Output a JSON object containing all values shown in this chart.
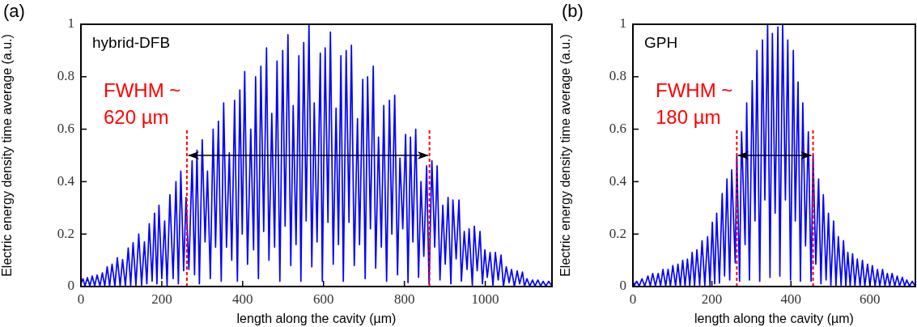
{
  "chart_data": [
    {
      "type": "line",
      "title": "(a)",
      "xlabel": "length along the cavity (µm)",
      "ylabel": "Electric energy density time average (a.u.)",
      "annotations": [
        "hybrid-DFB"
      ],
      "ref_lines": [
        {
          "axis": "x",
          "value": 262,
          "label": "FWHM ~ 620 µm",
          "color": "#ff0000",
          "line_style": "dashed"
        },
        {
          "axis": "x",
          "value": 862,
          "color": "#ff0000",
          "line_style": "dashed"
        }
      ],
      "xlim": [
        0,
        1165
      ],
      "xticks": [
        0,
        200,
        400,
        600,
        800,
        1000
      ],
      "ylim": [
        0,
        1
      ],
      "yticks": [
        0,
        0.2,
        0.4,
        0.6,
        0.8,
        1
      ],
      "x": [
        0,
        5,
        10,
        16,
        22,
        28,
        34,
        40,
        47,
        53,
        59,
        65,
        71,
        77,
        84,
        90,
        97,
        103,
        110,
        117,
        123,
        129,
        136,
        143,
        150,
        157,
        163,
        169,
        176,
        182,
        188,
        193,
        200,
        207,
        213,
        220,
        228,
        235,
        241,
        247,
        254,
        260,
        267,
        275,
        281,
        287,
        293,
        300,
        307,
        313,
        320,
        327,
        333,
        340,
        347,
        353,
        360,
        367,
        373,
        380,
        387,
        393,
        399,
        405,
        412,
        420,
        427,
        432,
        439,
        445,
        452,
        459,
        465,
        472,
        479,
        485,
        492,
        499,
        505,
        512,
        519,
        525,
        532,
        539,
        544,
        551,
        557,
        564,
        571,
        577,
        584,
        592,
        597,
        604,
        611,
        617,
        624,
        631,
        637,
        643,
        649,
        656,
        663,
        669,
        676,
        684,
        689,
        697,
        703,
        709,
        716,
        723,
        729,
        736,
        743,
        749,
        756,
        763,
        769,
        776,
        783,
        789,
        796,
        803,
        809,
        815,
        821,
        828,
        835,
        841,
        848,
        855,
        861,
        868,
        875,
        881,
        888,
        895,
        901,
        908,
        915,
        920,
        928,
        935,
        941,
        948,
        955,
        960,
        968,
        973,
        980,
        987,
        993,
        999,
        1005,
        1012,
        1019,
        1025,
        1032,
        1039,
        1045,
        1052,
        1059,
        1065,
        1072,
        1079,
        1085,
        1092,
        1097,
        1103,
        1110,
        1117,
        1123,
        1130,
        1137,
        1143,
        1150,
        1157,
        1163
      ],
      "series": [
        {
          "color": "#0000ff",
          "values": [
            0.01,
            0.03,
            0.002,
            0.034,
            0.002,
            0.04,
            0.002,
            0.044,
            0.002,
            0.052,
            0.002,
            0.075,
            0.002,
            0.085,
            0.002,
            0.11,
            0.002,
            0.103,
            0.002,
            0.147,
            0.005,
            0.167,
            0.005,
            0.2,
            0.005,
            0.17,
            0.01,
            0.24,
            0.02,
            0.28,
            0.01,
            0.31,
            0.03,
            0.25,
            0.005,
            0.35,
            0.03,
            0.4,
            0.01,
            0.44,
            0.06,
            0.34,
            0.065,
            0.48,
            0.045,
            0.52,
            0.01,
            0.56,
            0.17,
            0.44,
            0.03,
            0.6,
            0.15,
            0.63,
            0.02,
            0.7,
            0.15,
            0.51,
            0.1,
            0.71,
            0.02,
            0.75,
            0.2,
            0.82,
            0.085,
            0.6,
            0.14,
            0.8,
            0.03,
            0.84,
            0.21,
            0.91,
            0.1,
            0.66,
            0.15,
            0.86,
            0.02,
            0.9,
            0.23,
            0.96,
            0.08,
            0.69,
            0.16,
            0.88,
            0.02,
            0.93,
            0.25,
            1.0,
            0.075,
            0.7,
            0.17,
            0.89,
            0.02,
            0.91,
            0.245,
            0.97,
            0.085,
            0.68,
            0.16,
            0.88,
            0.02,
            0.9,
            0.245,
            0.92,
            0.08,
            0.64,
            0.16,
            0.79,
            0.03,
            0.8,
            0.22,
            0.84,
            0.07,
            0.57,
            0.15,
            0.69,
            0.02,
            0.71,
            0.2,
            0.73,
            0.045,
            0.49,
            0.22,
            0.58,
            0.015,
            0.57,
            0.17,
            0.6,
            0.035,
            0.4,
            0.115,
            0.46,
            0.01,
            0.48,
            0.15,
            0.46,
            0.025,
            0.31,
            0.085,
            0.34,
            0.01,
            0.33,
            0.105,
            0.33,
            0.02,
            0.21,
            0.065,
            0.22,
            0.005,
            0.23,
            0.06,
            0.21,
            0.01,
            0.14,
            0.035,
            0.13,
            0.005,
            0.13,
            0.025,
            0.12,
            0,
            0.075,
            0.015,
            0.065,
            0,
            0.06,
            0.01,
            0.055,
            0,
            0.03,
            0.002,
            0.025,
            0.002,
            0.025,
            0.002,
            0.02,
            0.002,
            0.02,
            0.005
          ]
        }
      ]
    },
    {
      "type": "line",
      "title": "(b)",
      "xlabel": "length along the cavity (µm)",
      "ylabel": "Electric energy density time average (a.u.)",
      "annotations": [
        "GPH"
      ],
      "ref_lines": [
        {
          "axis": "x",
          "value": 263,
          "label": "FWHM ~ 180 µm",
          "color": "#ff0000",
          "line_style": "dashed"
        },
        {
          "axis": "x",
          "value": 456,
          "color": "#ff0000",
          "line_style": "dashed"
        }
      ],
      "xlim": [
        0,
        715
      ],
      "xticks": [
        0,
        200,
        400,
        600
      ],
      "ylim": [
        0,
        1
      ],
      "yticks": [
        0,
        0.2,
        0.4,
        0.6,
        0.8,
        1
      ],
      "x": [
        0,
        4,
        9.5,
        16,
        23,
        30,
        38,
        44,
        50,
        57,
        64,
        70,
        76,
        83,
        89,
        95,
        101,
        108,
        114,
        120,
        126,
        132,
        138,
        144,
        150,
        156,
        162,
        169,
        175,
        182,
        189,
        195,
        201,
        207,
        212,
        219,
        226,
        232,
        238,
        245,
        250,
        259,
        263,
        270,
        275,
        284,
        288,
        295,
        302,
        309,
        314,
        321,
        328,
        334,
        341,
        347,
        353,
        360,
        367,
        372,
        379,
        386,
        392,
        399,
        406,
        411,
        418,
        424,
        430,
        437,
        444,
        451,
        456,
        463,
        470,
        476,
        482,
        489,
        495,
        501,
        508,
        514,
        520,
        527,
        533,
        539,
        544,
        550,
        556,
        562,
        568,
        575,
        581,
        587,
        594,
        600,
        606,
        613,
        619,
        625,
        632,
        638,
        644,
        650,
        656,
        663,
        669,
        675,
        682,
        688,
        693,
        700,
        707,
        713
      ],
      "series": [
        {
          "color": "#0000ff",
          "values": [
            0.02,
            0.005,
            0.02,
            0.002,
            0.03,
            0.002,
            0.04,
            0.002,
            0.05,
            0.002,
            0.05,
            0.002,
            0.065,
            0.002,
            0.065,
            0.002,
            0.08,
            0.002,
            0.085,
            0.002,
            0.1,
            0.002,
            0.105,
            0.002,
            0.13,
            0.002,
            0.14,
            0.005,
            0.175,
            0.005,
            0.19,
            0.005,
            0.245,
            0.01,
            0.28,
            0.013,
            0.355,
            0.04,
            0.41,
            0.025,
            0.445,
            0.09,
            0.5,
            0.02,
            0.59,
            0.16,
            0.7,
            0.025,
            0.785,
            0.25,
            0.9,
            0.02,
            0.94,
            0.33,
            1.0,
            0.035,
            0.965,
            0.28,
            0.99,
            0.04,
            1.0,
            0.33,
            0.94,
            0.025,
            0.9,
            0.25,
            0.78,
            0.02,
            0.7,
            0.155,
            0.59,
            0.02,
            0.5,
            0.085,
            0.41,
            0.01,
            0.35,
            0.025,
            0.28,
            0.005,
            0.25,
            0.005,
            0.19,
            0.005,
            0.175,
            0.002,
            0.13,
            0.002,
            0.125,
            0.002,
            0.105,
            0.002,
            0.1,
            0.002,
            0.085,
            0.002,
            0.08,
            0.002,
            0.065,
            0.002,
            0.065,
            0.002,
            0.05,
            0.002,
            0.05,
            0.002,
            0.04,
            0.002,
            0.035,
            0.002,
            0.025,
            0.002,
            0.02,
            0.005
          ]
        }
      ]
    }
  ]
}
